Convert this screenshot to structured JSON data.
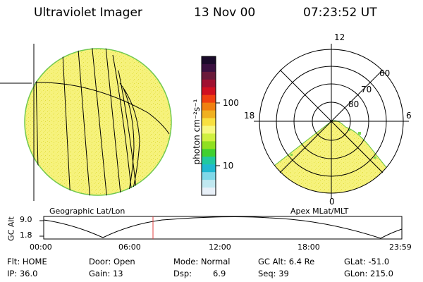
{
  "header": {
    "instrument": "Ultraviolet Imager",
    "date": "13 Nov 00",
    "time": "07:23:52 UT"
  },
  "left_panel": {
    "label": "Geographic Lat/Lon"
  },
  "right_panel": {
    "label": "Apex MLat/MLT",
    "mlt_labels": [
      "12",
      "18",
      "6",
      "0"
    ],
    "lat_labels": [
      "60",
      "70",
      "80"
    ]
  },
  "colorbar": {
    "label": "photon cm⁻²s⁻¹",
    "ticks": [
      "100",
      "10"
    ],
    "colors": [
      "#1a0a2a",
      "#3a1040",
      "#6a1a3a",
      "#a01030",
      "#d01020",
      "#f04010",
      "#f08010",
      "#f0b020",
      "#f8e040",
      "#f8f880",
      "#d0f040",
      "#90e020",
      "#40d030",
      "#20c8a0",
      "#20b8d0",
      "#80d8e8",
      "#c0e8f0",
      "#e8f0f8"
    ]
  },
  "timeline": {
    "axis_label": "GC Alt",
    "y_ticks": [
      "9.0",
      "1.8"
    ],
    "x_ticks": [
      "00:00",
      "06:00",
      "12:00",
      "18:00",
      "23:59"
    ],
    "marker_color": "#e04040"
  },
  "info": {
    "flt": "Flt: HOME",
    "ip": "IP: 36.0",
    "door": "Door: Open",
    "gain": "Gain: 13",
    "mode": "Mode: Normal",
    "dsp": "Dsp:",
    "dsp_val": "6.9",
    "gcalt": "GC Alt: 6.4 Re",
    "seq": "Seq: 39",
    "glat": "GLat: -51.0",
    "glon": "GLon: 215.0"
  },
  "colors": {
    "disk_fill": "#f5f07a",
    "disk_edge": "#60c040",
    "speckle": "#e8e040"
  }
}
